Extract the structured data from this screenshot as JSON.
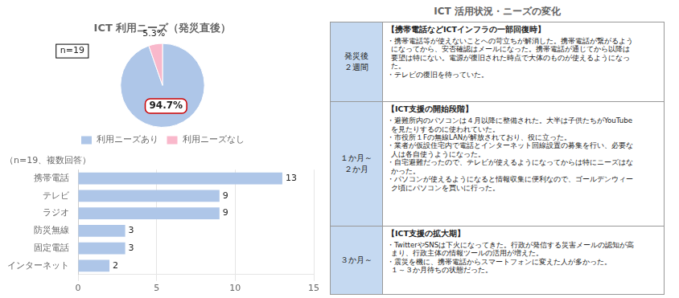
{
  "chart_data": [
    {
      "type": "pie",
      "title": "ICT 利用ニーズ（発災直後）",
      "categories": [
        "利用ニーズあり",
        "利用ニーズなし"
      ],
      "values": [
        94.7,
        5.3
      ],
      "value_labels": [
        "94.7%",
        "5.3%"
      ],
      "colors": [
        "#aec6e8",
        "#f9b8cb"
      ],
      "data_labels": true,
      "legend": "bottom",
      "annotations": [
        "n=19"
      ]
    },
    {
      "type": "bar",
      "orientation": "horizontal",
      "subtitle": "（n=19、複数回答）",
      "categories": [
        "携帯電話",
        "テレビ",
        "ラジオ",
        "防災無線",
        "固定電話",
        "インターネット"
      ],
      "values": [
        13,
        9,
        9,
        3,
        3,
        2
      ],
      "color": "#aec6e8",
      "xlim": [
        0,
        15
      ],
      "xticks": [
        0,
        5,
        10,
        15
      ],
      "grid": true,
      "data_labels": true
    },
    {
      "type": "table",
      "title": "ICT 活用状況・ニーズの変化",
      "color": "#c5d9f1",
      "rows": [
        {
          "period": "発災後\n２週間",
          "header": "【携帯電話などICTインフラの一部回復時】",
          "content": "・携帯電話等が使えないことへの苛立ちが解消した。携帯電話が繋がるよう\n  になってから、安否確認はメールになった。携帯電話が通じてから以降は\n  要望は特にない。電源が復旧された時点で大体のものが使えるようになっ\n  た。\n・テレビの復旧を待っていた。"
        },
        {
          "period": "１か月～\n２か月",
          "header": "【ICT支援の開始段階】",
          "content": "・避難所内のパソコンは４月以降に整備された。大半は子供たちがYouTube\n  を見たりするのに使われていた。\n・市役所１Fの無線LANが解放されており、役に立った。\n・業者が仮設住宅内で電話とインターネット回線設置の募集を行い、必要な\n  人は各自使うようになった。\n・自宅避難だったので、テレビが使えるようになってからは特にニーズはな\n  かった。\n・パソコンが使えるようになると情報収集に便利なので、ゴールデンウィー\n  ク頃にパソコンを買いに行った。"
        },
        {
          "period": "３か月～",
          "header": "【ICT支援の拡大期】",
          "content": "・TwitterやSNSは下火になってきた。行政が発信する災害メールの認知が高\n  まり、行政主体の情報ツールの活用が増えた。\n・震災を機に、携帯電話からスマートフォンに変えた人が多かった。\n  １～３か月待ちの状態だった。"
        }
      ]
    }
  ]
}
